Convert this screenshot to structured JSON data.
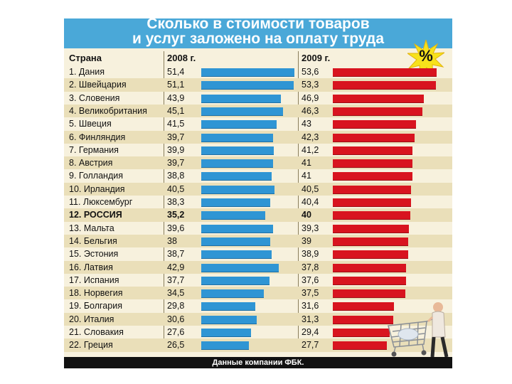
{
  "chart_data": {
    "type": "bar",
    "title": "Сколько в стоимости товаров и услуг заложено на оплату труда",
    "title_lines": [
      "Сколько в стоимости товаров",
      "и услуг заложено на оплату труда"
    ],
    "badge": "%",
    "category_header": "Страна",
    "categories": [
      "1. Дания",
      "2. Швейцария",
      "3. Словения",
      "4. Великобритания",
      "5. Швеция",
      "6. Финляндия",
      "7. Германия",
      "8. Австрия",
      "9. Голландия",
      "10. Ирландия",
      "11. Люксембург",
      "12. РОССИЯ",
      "13. Мальта",
      "14. Бельгия",
      "15. Эстония",
      "16. Латвия",
      "17. Испания",
      "18. Норвегия",
      "19. Болгария",
      "20. Италия",
      "21. Словакия",
      "22. Греция"
    ],
    "highlight_index": 11,
    "series": [
      {
        "name": "2008 г.",
        "color": "#2f95d4",
        "labels": [
          "51,4",
          "51,1",
          "43,9",
          "45,1",
          "41,5",
          "39,7",
          "39,9",
          "39,7",
          "38,8",
          "40,5",
          "38,3",
          "35,2",
          "39,6",
          "38",
          "38,7",
          "42,9",
          "37,7",
          "34,5",
          "29,8",
          "30,6",
          "27,6",
          "26,5"
        ],
        "values": [
          51.4,
          51.1,
          43.9,
          45.1,
          41.5,
          39.7,
          39.9,
          39.7,
          38.8,
          40.5,
          38.3,
          35.2,
          39.6,
          38,
          38.7,
          42.9,
          37.7,
          34.5,
          29.8,
          30.6,
          27.6,
          26.5
        ]
      },
      {
        "name": "2009 г.",
        "color": "#d8141f",
        "labels": [
          "53,6",
          "53,3",
          "46,9",
          "46,3",
          "43",
          "42,3",
          "41,2",
          "41",
          "41",
          "40,5",
          "40,4",
          "40",
          "39,3",
          "39",
          "38,9",
          "37,8",
          "37,6",
          "37,5",
          "31,6",
          "31,3",
          "29,4",
          "27,7"
        ],
        "values": [
          53.6,
          53.3,
          46.9,
          46.3,
          43,
          42.3,
          41.2,
          41,
          41,
          40.5,
          40.4,
          40,
          39.3,
          39,
          38.9,
          37.8,
          37.6,
          37.5,
          31.6,
          31.3,
          29.4,
          27.7
        ]
      }
    ],
    "xlim": [
      0,
      55
    ],
    "source": "Данные компании ФБК."
  }
}
